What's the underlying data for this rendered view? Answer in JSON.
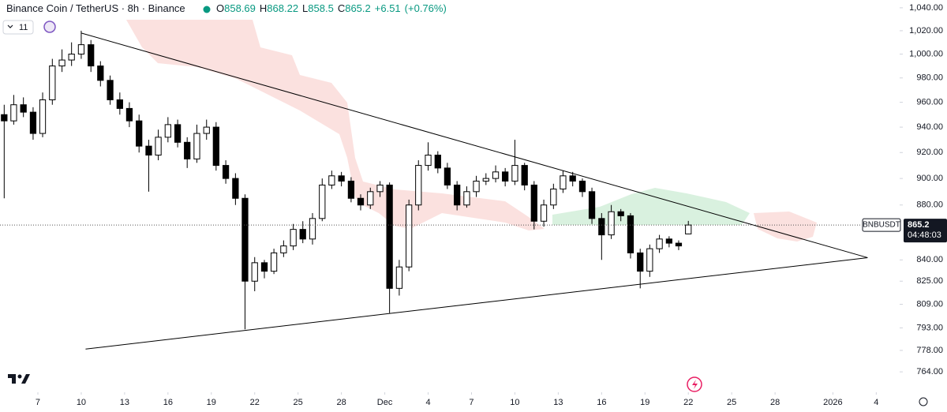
{
  "chart_data": {
    "type": "candlestick",
    "header": {
      "title": "Binance Coin / TetherUS · 8h · Binance",
      "open_label": "O",
      "high_label": "H",
      "low_label": "L",
      "close_label": "C",
      "change": "+6.51",
      "change_pct": "(+0.76%)",
      "indicator_count": "11"
    },
    "symbol": "BNBUSDT",
    "countdown": "04:48:03",
    "log_scale": true,
    "grid": false,
    "up_color": "#ffffff",
    "down_color": "#000000",
    "line_color": "#000000",
    "last_line_color": "#555555",
    "ylim": [
      751.9,
      1046.9
    ],
    "yticks": [
      {
        "value": 1040,
        "label": "1,040.00"
      },
      {
        "value": 1020,
        "label": "1,020.00"
      },
      {
        "value": 1000,
        "label": "1,000.00"
      },
      {
        "value": 980,
        "label": "980.00"
      },
      {
        "value": 960,
        "label": "960.00"
      },
      {
        "value": 940,
        "label": "940.00"
      },
      {
        "value": 920,
        "label": "920.00"
      },
      {
        "value": 900,
        "label": "900.00"
      },
      {
        "value": 880,
        "label": "880.00"
      },
      {
        "value": 840,
        "label": "840.00"
      },
      {
        "value": 825,
        "label": "825.00"
      },
      {
        "value": 809,
        "label": "809.00"
      },
      {
        "value": 793,
        "label": "793.00"
      },
      {
        "value": 778,
        "label": "778.00"
      },
      {
        "value": 764,
        "label": "764.00"
      }
    ],
    "xlim": [
      4.38,
      65.8
    ],
    "xticks": [
      7,
      10,
      13,
      16,
      19,
      22,
      25,
      28,
      {
        "value": 31,
        "label": "Dec"
      },
      {
        "value": 34,
        "label": "4"
      },
      {
        "value": 37,
        "label": "7"
      },
      {
        "value": 40,
        "label": "10"
      },
      {
        "value": 43,
        "label": "13"
      },
      {
        "value": 46,
        "label": "16"
      },
      {
        "value": 49,
        "label": "19"
      },
      {
        "value": 52,
        "label": "22"
      },
      {
        "value": 55,
        "label": "25"
      },
      {
        "value": 58,
        "label": "28"
      },
      {
        "value": 62,
        "label": "2026"
      },
      {
        "value": 65,
        "label": "4"
      }
    ],
    "x": [
      4.67,
      5.33,
      6,
      6.67,
      7.33,
      8,
      8.67,
      9.33,
      10,
      10.67,
      11.33,
      12,
      12.67,
      13.33,
      14,
      14.67,
      15.33,
      16,
      16.67,
      17.33,
      18,
      18.67,
      19.33,
      20,
      20.67,
      21.33,
      22,
      22.67,
      23.33,
      24,
      24.67,
      25.33,
      26,
      26.67,
      27.33,
      28,
      28.67,
      29.33,
      30,
      30.67,
      31.33,
      32,
      32.67,
      33.33,
      34,
      34.67,
      35.33,
      36,
      36.67,
      37.33,
      38,
      38.67,
      39.33,
      40,
      40.67,
      41.33,
      42,
      42.67,
      43.33,
      44,
      44.67,
      45.33,
      46,
      46.67,
      47.33,
      48,
      48.67,
      49.33,
      50,
      50.67,
      51.33,
      52
    ],
    "open": [
      950,
      945,
      958,
      952,
      935,
      962,
      990,
      995,
      1000,
      1008,
      990,
      978,
      962,
      955,
      945,
      925,
      918,
      932,
      942,
      928,
      915,
      935,
      940,
      910,
      900,
      885,
      825,
      838,
      832,
      845,
      850,
      862,
      855,
      870,
      895,
      902,
      898,
      885,
      880,
      890,
      895,
      820,
      835,
      880,
      910,
      918,
      908,
      895,
      880,
      890,
      898,
      900,
      905,
      898,
      910,
      895,
      868,
      880,
      892,
      902,
      898,
      890,
      870,
      858,
      875,
      872,
      845,
      832,
      848,
      855,
      852,
      858.69
    ],
    "high": [
      958,
      966,
      964,
      956,
      968,
      996,
      1004,
      1010,
      1020,
      1012,
      994,
      982,
      968,
      960,
      950,
      930,
      938,
      948,
      946,
      932,
      942,
      946,
      944,
      914,
      904,
      888,
      842,
      840,
      848,
      854,
      866,
      868,
      874,
      900,
      906,
      905,
      901,
      888,
      893,
      898,
      897,
      840,
      884,
      914,
      928,
      921,
      912,
      898,
      894,
      902,
      904,
      910,
      908,
      930,
      912,
      898,
      884,
      896,
      906,
      905,
      900,
      893,
      874,
      880,
      877,
      874,
      848,
      851,
      858,
      857,
      854,
      868.22
    ],
    "low": [
      885,
      942,
      948,
      930,
      932,
      958,
      985,
      990,
      996,
      985,
      973,
      958,
      950,
      940,
      920,
      890,
      914,
      928,
      924,
      908,
      912,
      930,
      906,
      896,
      880,
      792,
      818,
      827,
      830,
      842,
      847,
      852,
      851,
      868,
      892,
      894,
      882,
      876,
      877,
      886,
      803,
      815,
      832,
      876,
      906,
      904,
      892,
      876,
      878,
      886,
      895,
      897,
      894,
      895,
      891,
      862,
      864,
      877,
      889,
      894,
      886,
      866,
      840,
      855,
      868,
      841,
      820,
      828,
      845,
      849,
      847,
      858.5
    ],
    "close": [
      945,
      958,
      952,
      935,
      962,
      990,
      995,
      1000,
      1008,
      990,
      978,
      962,
      955,
      945,
      925,
      918,
      932,
      942,
      928,
      915,
      935,
      940,
      910,
      900,
      885,
      825,
      838,
      832,
      845,
      850,
      862,
      855,
      870,
      895,
      902,
      898,
      885,
      880,
      890,
      895,
      820,
      835,
      880,
      910,
      918,
      908,
      895,
      880,
      890,
      898,
      900,
      905,
      898,
      910,
      895,
      868,
      880,
      892,
      902,
      898,
      890,
      870,
      858,
      875,
      872,
      845,
      832,
      848,
      855,
      852,
      850,
      865.2
    ],
    "trendlines": [
      {
        "x": [
          10,
          64.4
        ],
        "y": [
          1018,
          841.6
        ]
      },
      {
        "x": [
          10.3,
          64.4
        ],
        "y": [
          778.9,
          841.6
        ]
      }
    ]
  }
}
